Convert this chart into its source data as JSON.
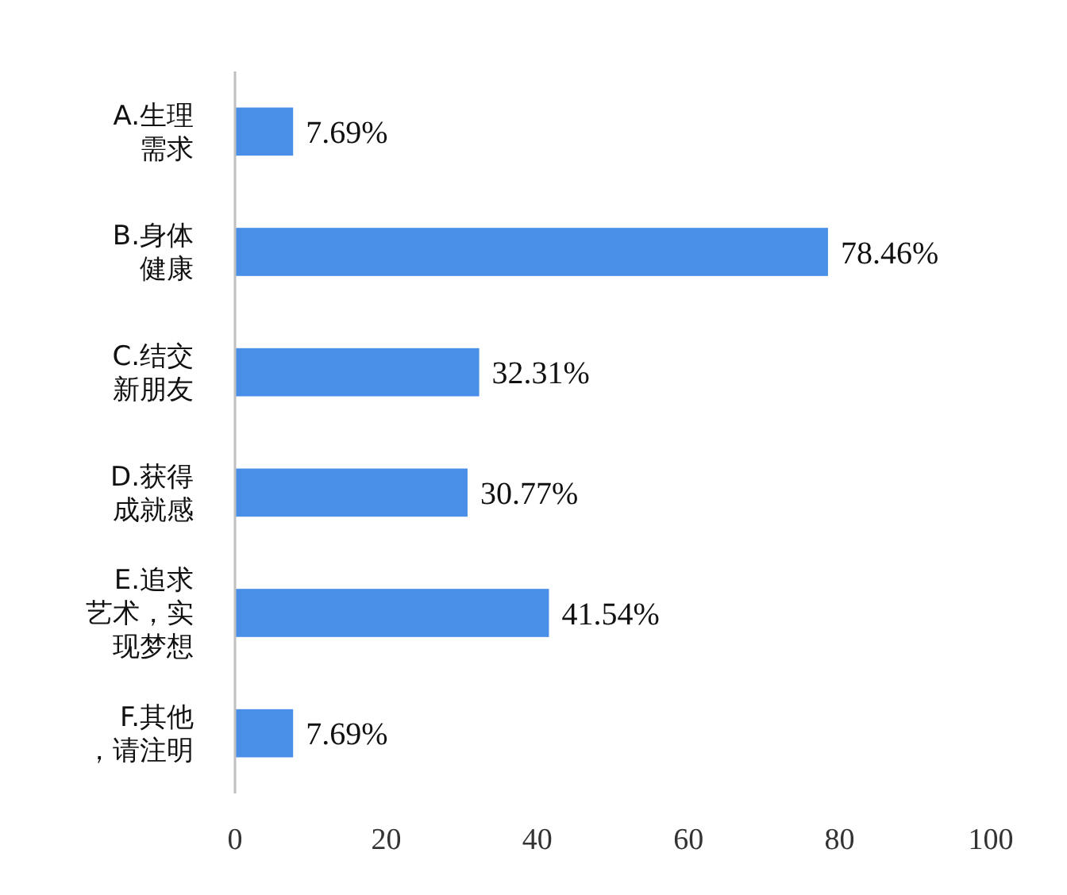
{
  "chart_data": {
    "type": "bar",
    "orientation": "horizontal",
    "categories": [
      "A.生理需求",
      "B.身体健康",
      "C.结交新朋友",
      "D.获得成就感",
      "E.追求艺术，实现梦想",
      "F.其他，请注明"
    ],
    "values": [
      7.69,
      78.46,
      32.31,
      30.77,
      41.54,
      7.69
    ],
    "value_labels": [
      "7.69%",
      "78.46%",
      "32.31%",
      "30.77%",
      "41.54%",
      "7.69%"
    ],
    "color": "#4a8fe7",
    "xlim": [
      0,
      100
    ],
    "xticks": [
      0,
      20,
      40,
      60,
      80,
      100
    ]
  }
}
